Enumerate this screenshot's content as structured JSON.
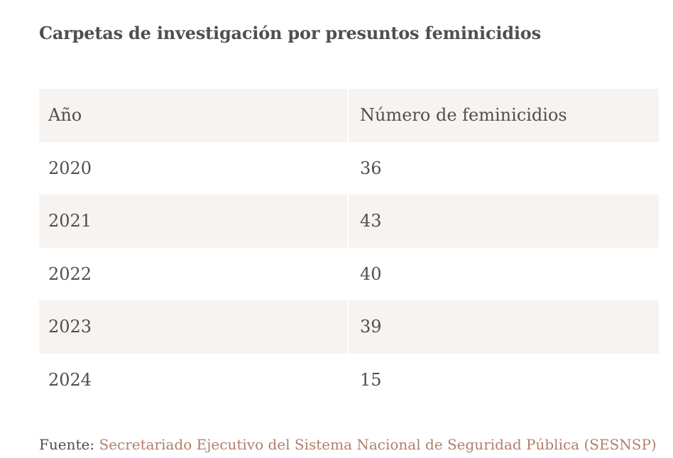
{
  "title": "Carpetas de investigación por presuntos feminicidios",
  "chart_data": {
    "type": "table",
    "columns": [
      "Año",
      "Número de feminicidios"
    ],
    "rows": [
      [
        "2020",
        "36"
      ],
      [
        "2021",
        "43"
      ],
      [
        "2022",
        "40"
      ],
      [
        "2023",
        "39"
      ],
      [
        "2024",
        "15"
      ]
    ]
  },
  "source": {
    "label": "Fuente:",
    "text": "Secretariado Ejecutivo del Sistema Nacional de Seguridad Pública (SESNSP)"
  },
  "colors": {
    "shaded_row": "#f7f3f1",
    "text": "#4f4f4f",
    "link": "#b07f6a"
  }
}
